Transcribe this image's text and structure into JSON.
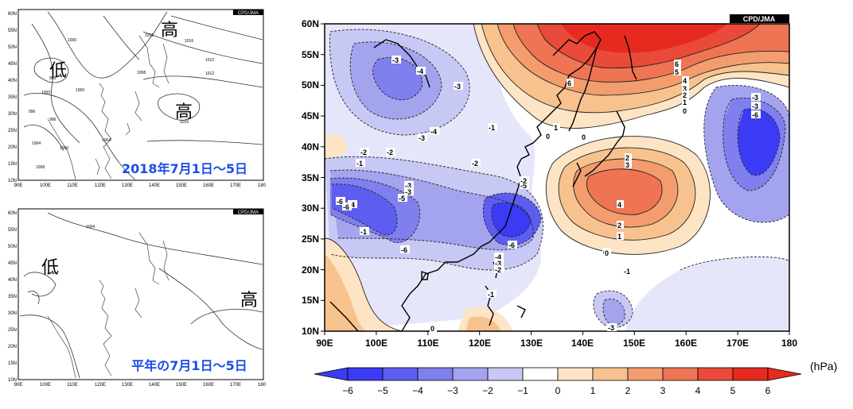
{
  "credit": "CPD/JMA",
  "unit": "(hPa)",
  "map_top": {
    "caption": "2018年7月1日～5日",
    "high_label": "高",
    "low_label": "低",
    "contour_labels": [
      "1016",
      "1016",
      "1012",
      "1012",
      "1008",
      "1004",
      "1000",
      "1000",
      "1000",
      "996",
      "996",
      "996",
      "1016",
      "1004",
      "1000",
      "1008"
    ]
  },
  "map_bottom": {
    "caption": "平年の7月1日～5日",
    "high_label": "高",
    "low_label": "低",
    "contour_labels": [
      "1004"
    ]
  },
  "small_map_axes": {
    "lat": [
      "10N",
      "15N",
      "20N",
      "25N",
      "30N",
      "35N",
      "40N",
      "45N",
      "50N",
      "55N",
      "60N"
    ],
    "lon": [
      "90E",
      "100E",
      "110E",
      "120E",
      "130E",
      "140E",
      "150E",
      "160E",
      "170E",
      "180"
    ]
  },
  "main_map": {
    "lat": [
      "10N",
      "15N",
      "20N",
      "25N",
      "30N",
      "35N",
      "40N",
      "45N",
      "50N",
      "55N",
      "60N"
    ],
    "lon": [
      "90E",
      "100E",
      "110E",
      "120E",
      "130E",
      "140E",
      "150E",
      "160E",
      "170E",
      "180"
    ],
    "contour_labels": [
      "-3",
      "-4",
      "-3",
      "-3",
      "-4",
      "-1",
      "-2",
      "-2",
      "-1",
      "-2",
      "-3",
      "-3",
      "-5",
      "-6",
      "-4",
      "-1",
      "-6",
      "-6",
      "-5",
      "-6",
      "-4",
      "-3",
      "-2",
      "-1",
      "-1",
      "0",
      "0",
      "-2",
      "1",
      "0",
      "6",
      "6",
      "5",
      "4",
      "3",
      "2",
      "1",
      "0",
      "-3",
      "-3",
      "-6",
      "2",
      "3",
      "4",
      "2",
      "1",
      "0",
      "-1",
      "-3",
      "0"
    ]
  },
  "colorbar": {
    "ticks": [
      "−6",
      "−5",
      "−4",
      "−3",
      "−2",
      "−1",
      "0",
      "1",
      "2",
      "3",
      "4",
      "5",
      "6"
    ],
    "colors": [
      "#3b3bf5",
      "#5d5df0",
      "#7f7fee",
      "#a3a3ee",
      "#c8c8f4",
      "#e6e6fa",
      "#ffffff",
      "#fce4c4",
      "#f8c28e",
      "#f39d6e",
      "#ee7454",
      "#ea4a3a",
      "#e62a20"
    ]
  }
}
